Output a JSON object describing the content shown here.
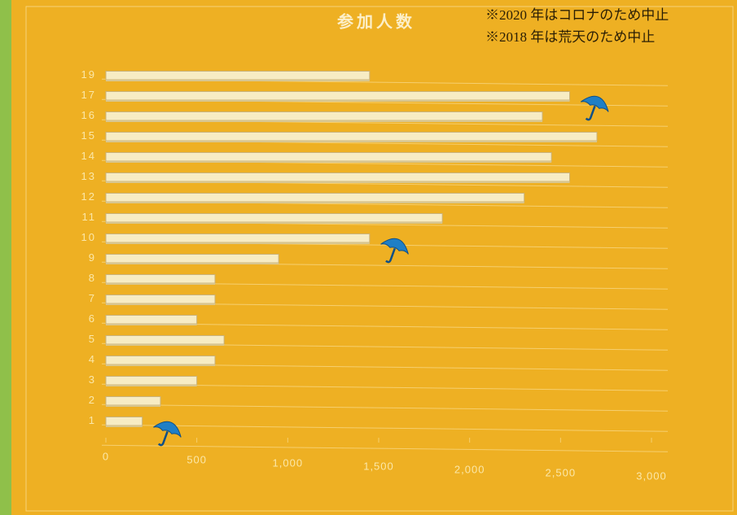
{
  "chart_data": {
    "type": "bar",
    "orientation": "horizontal",
    "title": "参加人数",
    "annotations": [
      "※2020 年はコロナのため中止",
      "※2018 年は荒天のため中止"
    ],
    "categories": [
      "19",
      "17",
      "16",
      "15",
      "14",
      "13",
      "12",
      "11",
      "10",
      "9",
      "8",
      "7",
      "6",
      "5",
      "4",
      "3",
      "2",
      "1"
    ],
    "values": [
      1450,
      2550,
      2400,
      2700,
      2450,
      2550,
      2300,
      1850,
      1450,
      950,
      600,
      600,
      500,
      650,
      600,
      500,
      300,
      200
    ],
    "color": "#f7ecc4",
    "rainy_categories": [
      "17",
      "10",
      "1"
    ],
    "xlim": [
      0,
      3000
    ],
    "xticks": [
      0,
      500,
      {
        "value": 1000,
        "label": "1,000"
      },
      {
        "value": 1500,
        "label": "1,500"
      },
      {
        "value": 2000,
        "label": "2,000"
      },
      {
        "value": 2500,
        "label": "2,500"
      },
      {
        "value": 3000,
        "label": "3,000"
      }
    ]
  }
}
